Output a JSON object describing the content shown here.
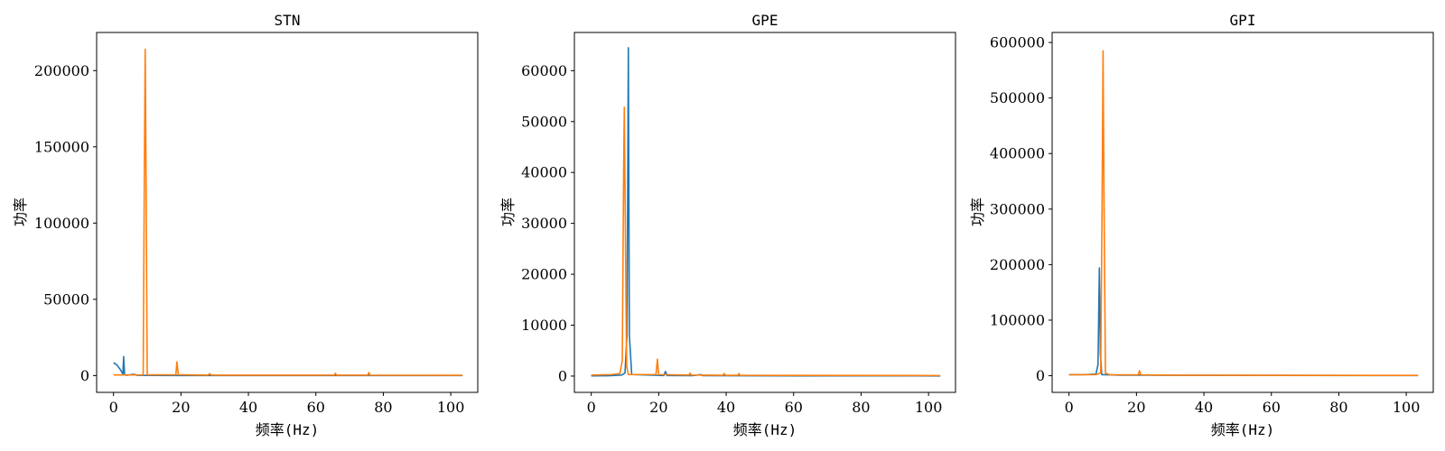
{
  "chart_data": [
    {
      "type": "line",
      "title": "STN",
      "xlabel": "频率(Hz)",
      "ylabel": "功率",
      "xlim": [
        -5,
        108
      ],
      "ylim": [
        -11000,
        225000
      ],
      "xticks": [
        0,
        20,
        40,
        60,
        80,
        100
      ],
      "yticks": [
        0,
        50000,
        100000,
        150000,
        200000
      ],
      "series": [
        {
          "color": "#1f77b4",
          "points": [
            [
              0,
              8500
            ],
            [
              1,
              7000
            ],
            [
              2,
              4000
            ],
            [
              2.8,
              1000
            ],
            [
              3.0,
              12500
            ],
            [
              3.3,
              500
            ],
            [
              4,
              200
            ],
            [
              6,
              900
            ],
            [
              7,
              200
            ],
            [
              10,
              100
            ],
            [
              20,
              80
            ],
            [
              40,
              50
            ],
            [
              60,
              40
            ],
            [
              80,
              30
            ],
            [
              100,
              20
            ],
            [
              103.5,
              20
            ]
          ]
        },
        {
          "color": "#ff7f0e",
          "points": [
            [
              0,
              400
            ],
            [
              5,
              400
            ],
            [
              8.8,
              500
            ],
            [
              9.2,
              150000
            ],
            [
              9.4,
              214000
            ],
            [
              9.6,
              150000
            ],
            [
              10,
              500
            ],
            [
              18.5,
              600
            ],
            [
              18.8,
              9000
            ],
            [
              19.2,
              600
            ],
            [
              28,
              300
            ],
            [
              28.5,
              1200
            ],
            [
              29,
              300
            ],
            [
              65.5,
              300
            ],
            [
              65.8,
              1500
            ],
            [
              66.1,
              300
            ],
            [
              75.4,
              300
            ],
            [
              75.7,
              2000
            ],
            [
              76,
              300
            ],
            [
              103.5,
              200
            ]
          ]
        }
      ]
    },
    {
      "type": "line",
      "title": "GPE",
      "xlabel": "频率(Hz)",
      "ylabel": "功率",
      "xlim": [
        -5,
        108
      ],
      "ylim": [
        -3200,
        67500
      ],
      "xticks": [
        0,
        20,
        40,
        60,
        80,
        100
      ],
      "yticks": [
        0,
        10000,
        20000,
        30000,
        40000,
        50000,
        60000
      ],
      "series": [
        {
          "color": "#1f77b4",
          "points": [
            [
              0,
              50
            ],
            [
              5,
              60
            ],
            [
              9,
              200
            ],
            [
              10,
              600
            ],
            [
              10.6,
              8000
            ],
            [
              11.0,
              64500
            ],
            [
              11.3,
              8000
            ],
            [
              12,
              300
            ],
            [
              21.5,
              100
            ],
            [
              22,
              900
            ],
            [
              22.5,
              100
            ],
            [
              30,
              80
            ],
            [
              32.5,
              300
            ],
            [
              33,
              80
            ],
            [
              60,
              50
            ],
            [
              80,
              40
            ],
            [
              103.5,
              30
            ]
          ]
        },
        {
          "color": "#ff7f0e",
          "points": [
            [
              0,
              200
            ],
            [
              6,
              300
            ],
            [
              8.5,
              500
            ],
            [
              9.2,
              3000
            ],
            [
              9.6,
              40000
            ],
            [
              9.8,
              52800
            ],
            [
              10.1,
              30000
            ],
            [
              10.5,
              2000
            ],
            [
              11,
              300
            ],
            [
              19.2,
              300
            ],
            [
              19.6,
              3300
            ],
            [
              20,
              300
            ],
            [
              29,
              200
            ],
            [
              29.3,
              600
            ],
            [
              29.6,
              200
            ],
            [
              39,
              150
            ],
            [
              39.4,
              500
            ],
            [
              39.8,
              150
            ],
            [
              43.5,
              150
            ],
            [
              43.8,
              500
            ],
            [
              44.1,
              150
            ],
            [
              103.5,
              100
            ]
          ]
        }
      ]
    },
    {
      "type": "line",
      "title": "GPI",
      "xlabel": "频率(Hz)",
      "ylabel": "功率",
      "xlim": [
        -5,
        108
      ],
      "ylim": [
        -30000,
        618000
      ],
      "xticks": [
        0,
        20,
        40,
        60,
        80,
        100
      ],
      "yticks": [
        0,
        100000,
        200000,
        300000,
        400000,
        500000,
        600000
      ],
      "series": [
        {
          "color": "#1f77b4",
          "points": [
            [
              0,
              2000
            ],
            [
              5,
              2000
            ],
            [
              8,
              3000
            ],
            [
              8.6,
              20000
            ],
            [
              9.0,
              194000
            ],
            [
              9.3,
              40000
            ],
            [
              9.7,
              2000
            ],
            [
              15,
              1000
            ],
            [
              30,
              800
            ],
            [
              60,
              500
            ],
            [
              103.5,
              400
            ]
          ]
        },
        {
          "color": "#ff7f0e",
          "points": [
            [
              0,
              1500
            ],
            [
              8,
              2000
            ],
            [
              9.4,
              5000
            ],
            [
              9.8,
              300000
            ],
            [
              10.1,
              585000
            ],
            [
              10.4,
              300000
            ],
            [
              10.8,
              5000
            ],
            [
              12,
              1500
            ],
            [
              20.5,
              1500
            ],
            [
              20.9,
              9000
            ],
            [
              21.3,
              1500
            ],
            [
              30,
              1000
            ],
            [
              60,
              800
            ],
            [
              103.5,
              500
            ]
          ]
        }
      ]
    }
  ]
}
